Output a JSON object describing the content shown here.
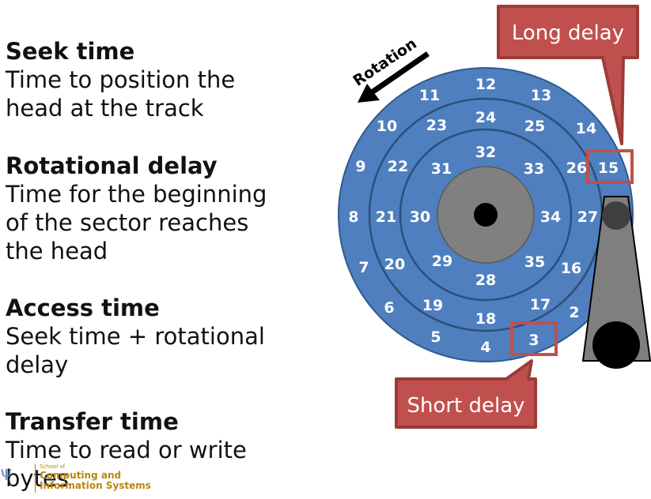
{
  "definitions": [
    {
      "term": "Seek time",
      "desc_lines": [
        "Time to position the",
        "head at the track"
      ]
    },
    {
      "term": "Rotational delay",
      "desc_lines": [
        "Time for the beginning",
        "of the sector reaches",
        "the head"
      ]
    },
    {
      "term": "Access time",
      "desc_lines": [
        "Seek time + rotational",
        "delay"
      ]
    },
    {
      "term": "Transfer time",
      "desc_lines": [
        "Time to read or write",
        "bytes"
      ]
    }
  ],
  "diagram": {
    "rotation_label": "Rotation",
    "callouts": {
      "long": "Long delay",
      "short": "Short delay"
    },
    "highlighted_sectors": [
      "15",
      "3"
    ],
    "colors": {
      "platter": "#4f7fbf",
      "hub": "#808080",
      "callout": "#c0504d",
      "arm": "#7f7f7f"
    },
    "tracks": [
      {
        "name": "outer",
        "sectors": [
          "12",
          "13",
          "14",
          "15",
          "16",
          "2",
          "3",
          "4",
          "5",
          "6",
          "7",
          "8",
          "9",
          "10",
          "11"
        ]
      },
      {
        "name": "middle",
        "sectors": [
          "24",
          "25",
          "26",
          "27",
          "35",
          "17",
          "18",
          "19",
          "20",
          "21",
          "22",
          "23"
        ]
      },
      {
        "name": "inner",
        "sectors": [
          "32",
          "33",
          "34",
          "28",
          "29",
          "30",
          "31"
        ]
      }
    ]
  },
  "logo": {
    "mark": "ψ",
    "school_line": "School of",
    "name_lines": [
      "Computing and",
      "Information Systems"
    ]
  }
}
